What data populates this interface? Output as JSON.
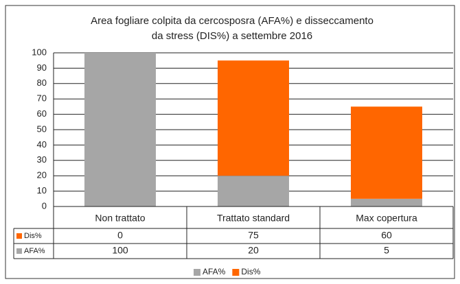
{
  "chart_data": {
    "type": "stacked_bar",
    "title": "Area fogliare colpita da cercosposra (AFA%) e disseccamento da stress (DIS%) a settembre 2016",
    "categories": [
      "Non trattato",
      "Trattato standard",
      "Max copertura"
    ],
    "series": [
      {
        "name": "AFA%",
        "color": "#a6a6a6",
        "values": [
          100,
          20,
          5
        ]
      },
      {
        "name": "Dis%",
        "color": "#ff6600",
        "values": [
          0,
          75,
          60
        ]
      }
    ],
    "ylim": [
      0,
      100
    ],
    "yticks": [
      0,
      10,
      20,
      30,
      40,
      50,
      60,
      70,
      80,
      90,
      100
    ],
    "grid": true,
    "legend": "bottom"
  }
}
